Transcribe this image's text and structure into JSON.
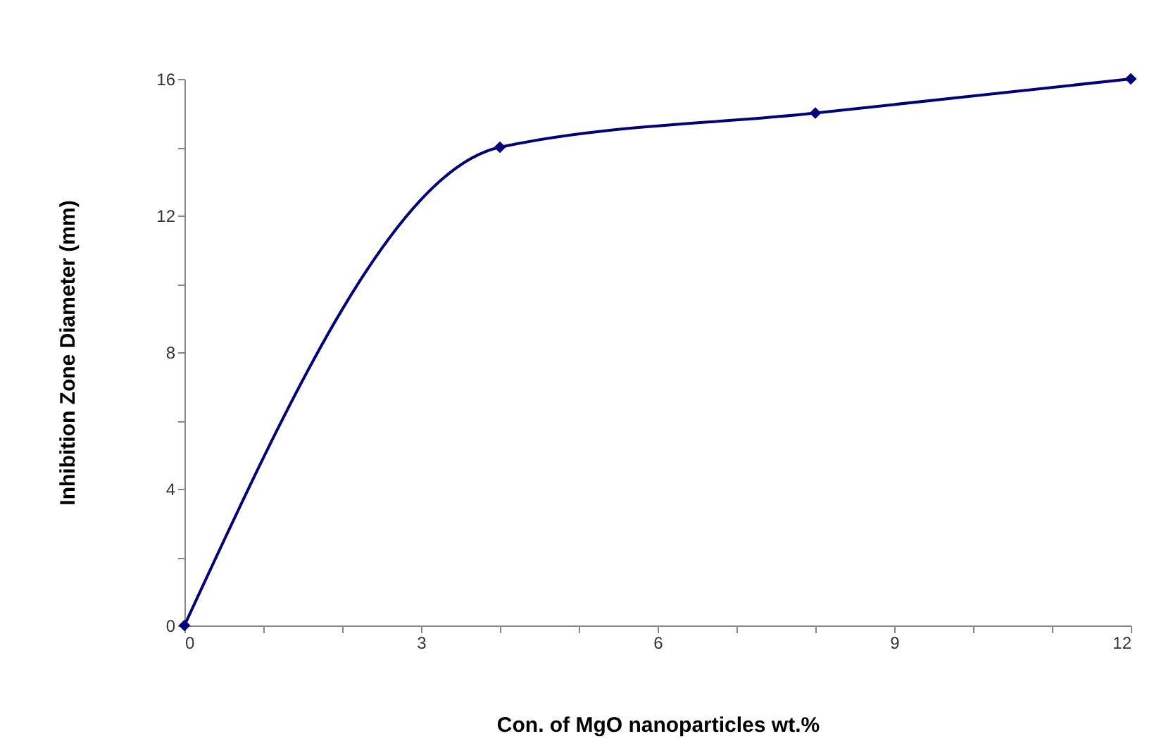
{
  "chart_data": {
    "type": "line",
    "xlabel": "Con. of MgO nanoparticles wt.%",
    "ylabel": "Inhibition Zone Diameter (mm)",
    "x": [
      0,
      4,
      8,
      12
    ],
    "series": [
      {
        "color": "#000080",
        "values": [
          0,
          14,
          15,
          16
        ]
      }
    ],
    "xlim": [
      0,
      12
    ],
    "xticks": [
      0,
      {
        "value": 1,
        "label": null
      },
      {
        "value": 2,
        "label": null
      },
      3,
      {
        "value": 4,
        "label": null
      },
      {
        "value": 5,
        "label": null
      },
      6,
      {
        "value": 7,
        "label": null
      },
      {
        "value": 8,
        "label": null
      },
      9,
      {
        "value": 10,
        "label": null
      },
      {
        "value": 11,
        "label": null
      },
      12
    ],
    "ylim": [
      0,
      16
    ],
    "yticks": [
      0,
      {
        "value": 2,
        "label": null
      },
      4,
      {
        "value": 6,
        "label": null
      },
      8,
      {
        "value": 10,
        "label": null
      },
      12,
      {
        "value": 14,
        "label": null
      },
      16
    ],
    "grid": false,
    "marker": "diamond",
    "line_style": "solid"
  }
}
